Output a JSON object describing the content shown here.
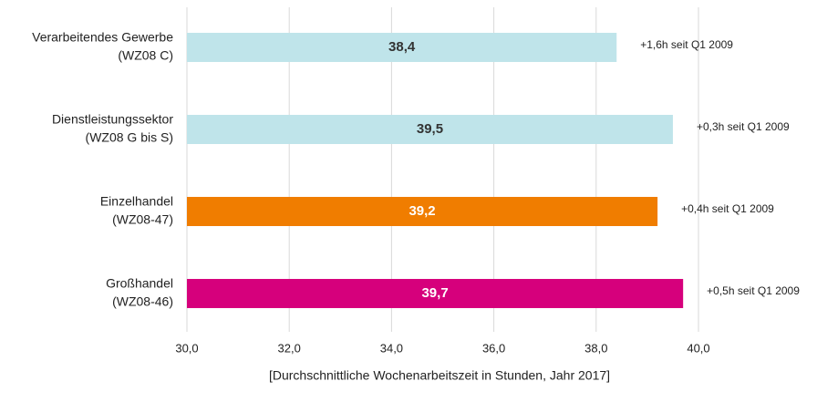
{
  "chart_data": {
    "type": "hbar",
    "categories": [
      [
        "Verarbeitendes Gewerbe",
        "(WZ08 C)"
      ],
      [
        "Dienstleistungssektor",
        "(WZ08 G bis S)"
      ],
      [
        "Einzelhandel",
        "(WZ08-47)"
      ],
      [
        "Großhandel",
        "(WZ08-46)"
      ]
    ],
    "values": [
      38.4,
      39.5,
      39.2,
      39.7
    ],
    "value_labels": [
      "38,4",
      "39,5",
      "39,2",
      "39,7"
    ],
    "colors": [
      "#bfe4ea",
      "#bfe4ea",
      "#f07d00",
      "#d6007c"
    ],
    "value_label_colors": [
      "#333333",
      "#333333",
      "#ffffff",
      "#ffffff"
    ],
    "annotations": [
      "+1,6h seit Q1 2009",
      "+0,3h seit Q1 2009",
      "+0,4h seit Q1 2009",
      "+0,5h seit Q1 2009"
    ],
    "xlim": [
      30,
      40
    ],
    "xticks": [
      {
        "value": 30,
        "label": "30,0"
      },
      {
        "value": 32,
        "label": "32,0"
      },
      {
        "value": 34,
        "label": "34,0"
      },
      {
        "value": 36,
        "label": "36,0"
      },
      {
        "value": 38,
        "label": "38,0"
      },
      {
        "value": 40,
        "label": "40,0"
      }
    ],
    "x_label": "[Durchschnittliche Wochenarbeitszeit in Stunden, Jahr 2017]",
    "grid": true
  }
}
